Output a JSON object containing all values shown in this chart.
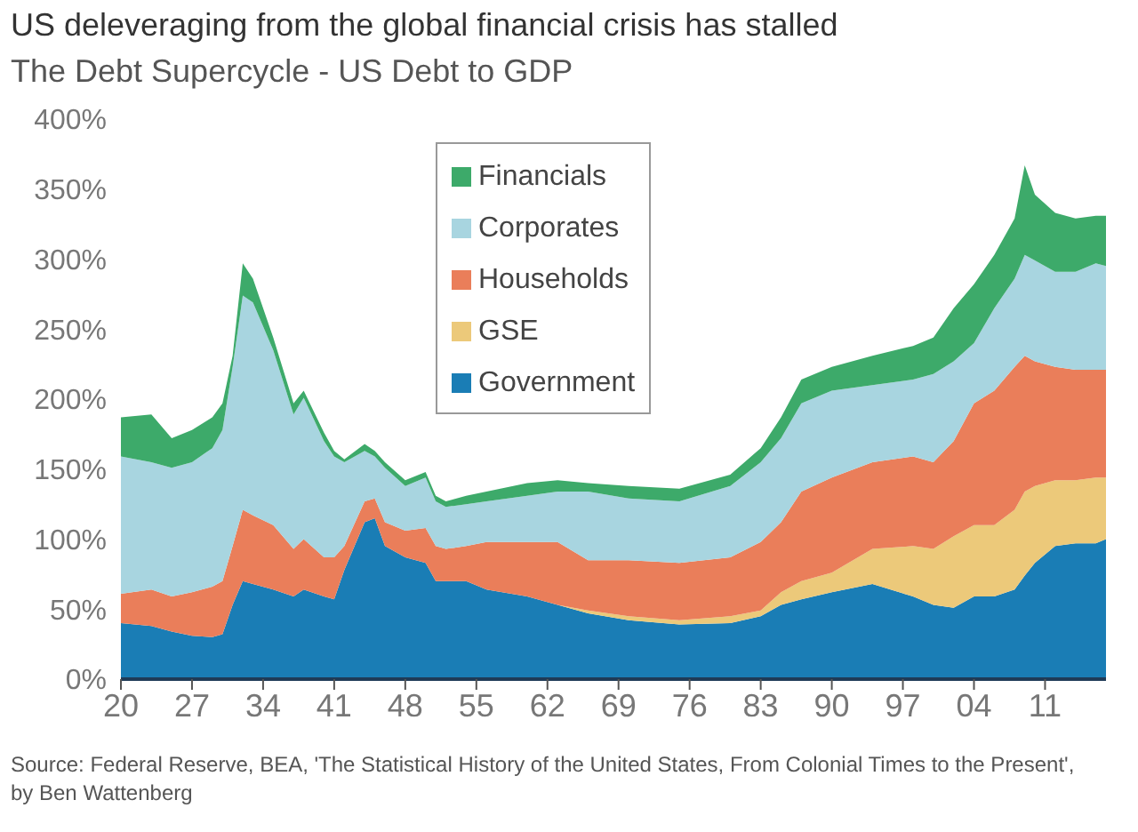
{
  "chart_data": {
    "type": "area",
    "title": "US deleveraging from the global financial crisis has stalled",
    "subtitle": "The Debt Supercycle - US Debt to GDP",
    "stacked": true,
    "legend": "top",
    "x": [
      1920,
      1923,
      1925,
      1927,
      1929,
      1930,
      1931,
      1932,
      1933,
      1935,
      1937,
      1938,
      1940,
      1941,
      1942,
      1944,
      1945,
      1946,
      1948,
      1950,
      1951,
      1952,
      1954,
      1956,
      1960,
      1963,
      1966,
      1970,
      1975,
      1980,
      1983,
      1985,
      1987,
      1990,
      1994,
      1998,
      2000,
      2002,
      2004,
      2006,
      2008,
      2009,
      2010,
      2012,
      2014,
      2016,
      2017
    ],
    "series": [
      {
        "name": "Government",
        "color": "#1a7db5",
        "values": [
          40,
          38,
          34,
          31,
          30,
          32,
          53,
          70,
          68,
          64,
          59,
          64,
          59,
          57,
          78,
          112,
          115,
          95,
          87,
          83,
          70,
          70,
          70,
          64,
          59,
          53,
          47,
          42,
          39,
          40,
          45,
          53,
          57,
          62,
          68,
          59,
          53,
          51,
          59,
          59,
          64,
          74,
          83,
          95,
          97,
          97,
          100
        ]
      },
      {
        "name": "GSE",
        "color": "#ecc97a",
        "values": [
          0,
          0,
          0,
          0,
          0,
          0,
          0,
          0,
          0,
          0,
          0,
          0,
          0,
          0,
          0,
          0,
          0,
          0,
          0,
          0,
          0,
          0,
          0,
          0,
          0,
          0,
          2,
          3,
          3,
          5,
          4,
          9,
          13,
          14,
          25,
          36,
          40,
          51,
          51,
          51,
          57,
          60,
          55,
          47,
          45,
          47,
          44
        ]
      },
      {
        "name": "Households",
        "color": "#ea7e5a",
        "values": [
          21,
          26,
          25,
          31,
          36,
          38,
          42,
          51,
          49,
          46,
          34,
          36,
          28,
          30,
          17,
          15,
          14,
          17,
          19,
          25,
          25,
          23,
          25,
          34,
          39,
          45,
          36,
          40,
          41,
          42,
          49,
          50,
          64,
          68,
          62,
          64,
          62,
          68,
          87,
          96,
          102,
          97,
          89,
          81,
          79,
          77,
          77
        ]
      },
      {
        "name": "Corporates",
        "color": "#a8d5e0",
        "values": [
          98,
          91,
          92,
          93,
          99,
          108,
          128,
          153,
          152,
          125,
          96,
          101,
          83,
          72,
          60,
          36,
          30,
          39,
          32,
          36,
          32,
          30,
          30,
          29,
          33,
          36,
          49,
          44,
          44,
          51,
          57,
          60,
          63,
          62,
          55,
          55,
          63,
          57,
          43,
          59,
          63,
          72,
          72,
          68,
          70,
          76,
          74
        ]
      },
      {
        "name": "Financials",
        "color": "#3daa6a",
        "values": [
          28,
          34,
          21,
          23,
          22,
          19,
          8,
          23,
          17,
          9,
          8,
          5,
          6,
          4,
          2,
          5,
          4,
          4,
          4,
          4,
          4,
          4,
          6,
          7,
          9,
          8,
          6,
          9,
          9,
          8,
          10,
          15,
          17,
          17,
          21,
          24,
          26,
          38,
          42,
          38,
          43,
          64,
          47,
          42,
          38,
          34,
          36
        ]
      }
    ],
    "xlim": [
      1920,
      2017
    ],
    "xticks": [
      {
        "value": 1920,
        "label": "20"
      },
      {
        "value": 1927,
        "label": "27"
      },
      {
        "value": 1934,
        "label": "34"
      },
      {
        "value": 1941,
        "label": "41"
      },
      {
        "value": 1948,
        "label": "48"
      },
      {
        "value": 1955,
        "label": "55"
      },
      {
        "value": 1962,
        "label": "62"
      },
      {
        "value": 1969,
        "label": "69"
      },
      {
        "value": 1976,
        "label": "76"
      },
      {
        "value": 1983,
        "label": "83"
      },
      {
        "value": 1990,
        "label": "90"
      },
      {
        "value": 1997,
        "label": "97"
      },
      {
        "value": 2004,
        "label": "04"
      },
      {
        "value": 2011,
        "label": "11"
      }
    ],
    "ylim": [
      0,
      400
    ],
    "yticks": [
      {
        "value": 0,
        "label": "0%"
      },
      {
        "value": 50,
        "label": "50%"
      },
      {
        "value": 100,
        "label": "100%"
      },
      {
        "value": 150,
        "label": "150%"
      },
      {
        "value": 200,
        "label": "200%"
      },
      {
        "value": 250,
        "label": "250%"
      },
      {
        "value": 300,
        "label": "300%"
      },
      {
        "value": 350,
        "label": "350%"
      },
      {
        "value": 400,
        "label": "400%"
      }
    ],
    "grid": false,
    "annotations": [
      "Source: Federal Reserve, BEA, 'The Statistical History of the United States, From Colonial Times to the Present', by Ben Wattenberg"
    ]
  }
}
